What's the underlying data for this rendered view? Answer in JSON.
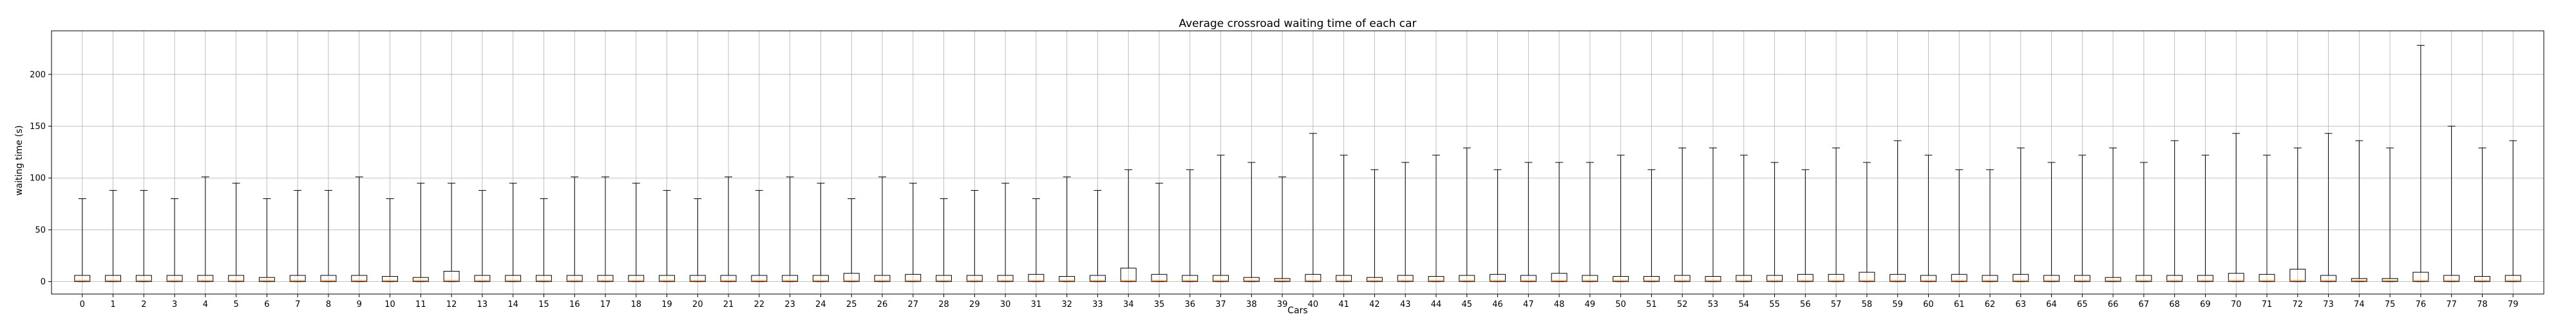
{
  "chart_data": {
    "type": "box",
    "title": "Average crossroad waiting time of each car",
    "xlabel": "Cars",
    "ylabel": "waiting time (s)",
    "ylim": [
      -12,
      242
    ],
    "yticks": [
      0,
      50,
      100,
      150,
      200
    ],
    "grid": true,
    "box_color": "#000000",
    "median_color": "#ff7f0e",
    "categories": [
      "0",
      "1",
      "2",
      "3",
      "4",
      "5",
      "6",
      "7",
      "8",
      "9",
      "10",
      "11",
      "12",
      "13",
      "14",
      "15",
      "16",
      "17",
      "18",
      "19",
      "20",
      "21",
      "22",
      "23",
      "24",
      "25",
      "26",
      "27",
      "28",
      "29",
      "30",
      "31",
      "32",
      "33",
      "34",
      "35",
      "36",
      "37",
      "38",
      "39",
      "40",
      "41",
      "42",
      "43",
      "44",
      "45",
      "46",
      "47",
      "48",
      "49",
      "50",
      "51",
      "52",
      "53",
      "54",
      "55",
      "56",
      "57",
      "58",
      "59",
      "60",
      "61",
      "62",
      "63",
      "64",
      "65",
      "66",
      "67",
      "68",
      "69",
      "70",
      "71",
      "72",
      "73",
      "74",
      "75",
      "76",
      "77",
      "78",
      "79"
    ],
    "whisker_high": [
      80,
      88,
      88,
      80,
      101,
      95,
      80,
      88,
      88,
      101,
      80,
      95,
      95,
      88,
      95,
      80,
      101,
      101,
      95,
      88,
      80,
      101,
      88,
      101,
      95,
      80,
      101,
      95,
      80,
      88,
      95,
      80,
      101,
      88,
      108,
      95,
      108,
      122,
      115,
      101,
      143,
      122,
      108,
      115,
      122,
      129,
      108,
      115,
      115,
      115,
      122,
      108,
      129,
      129,
      122,
      115,
      108,
      129,
      115,
      136,
      122,
      108,
      108,
      129,
      115,
      122,
      129,
      115,
      136,
      122,
      143,
      122,
      129,
      143,
      136,
      129,
      228,
      150,
      129,
      136
    ],
    "q3": [
      6,
      6,
      6,
      6,
      6,
      6,
      4,
      6,
      6,
      6,
      5,
      4,
      10,
      6,
      6,
      6,
      6,
      6,
      6,
      6,
      6,
      6,
      6,
      6,
      6,
      8,
      6,
      7,
      6,
      6,
      6,
      7,
      5,
      6,
      13,
      7,
      6,
      6,
      4,
      3,
      7,
      6,
      4,
      6,
      5,
      6,
      7,
      6,
      8,
      6,
      5,
      5,
      6,
      5,
      6,
      6,
      7,
      7,
      9,
      7,
      6,
      7,
      6,
      7,
      6,
      6,
      4,
      6,
      6,
      6,
      8,
      7,
      12,
      6,
      3,
      3,
      9,
      6,
      5,
      6
    ],
    "median": [
      1,
      1,
      1,
      1,
      1,
      1,
      1,
      1,
      1,
      1,
      1,
      1,
      1,
      1,
      1,
      1,
      1,
      1,
      1,
      1,
      1,
      1,
      1,
      1,
      1,
      1,
      1,
      1,
      1,
      1,
      1,
      1,
      1,
      1,
      1,
      1,
      1,
      1,
      1,
      1,
      1,
      1,
      1,
      1,
      1,
      1,
      1,
      1,
      1,
      1,
      1,
      1,
      1,
      1,
      1,
      1,
      1,
      1,
      1,
      1,
      1,
      1,
      1,
      1,
      1,
      1,
      1,
      1,
      1,
      1,
      1,
      1,
      1,
      1,
      1,
      1,
      1,
      1,
      1,
      1
    ],
    "q1": [
      0,
      0,
      0,
      0,
      0,
      0,
      0,
      0,
      0,
      0,
      0,
      0,
      0,
      0,
      0,
      0,
      0,
      0,
      0,
      0,
      0,
      0,
      0,
      0,
      0,
      0,
      0,
      0,
      0,
      0,
      0,
      0,
      0,
      0,
      0,
      0,
      0,
      0,
      0,
      0,
      0,
      0,
      0,
      0,
      0,
      0,
      0,
      0,
      0,
      0,
      0,
      0,
      0,
      0,
      0,
      0,
      0,
      0,
      0,
      0,
      0,
      0,
      0,
      0,
      0,
      0,
      0,
      0,
      0,
      0,
      0,
      0,
      0,
      0,
      0,
      0,
      0,
      0,
      0,
      0
    ],
    "whisker_low": [
      0,
      0,
      0,
      0,
      0,
      0,
      0,
      0,
      0,
      0,
      0,
      0,
      0,
      0,
      0,
      0,
      0,
      0,
      0,
      0,
      0,
      0,
      0,
      0,
      0,
      0,
      0,
      0,
      0,
      0,
      0,
      0,
      0,
      0,
      0,
      0,
      0,
      0,
      0,
      0,
      0,
      0,
      0,
      0,
      0,
      0,
      0,
      0,
      0,
      0,
      0,
      0,
      0,
      0,
      0,
      0,
      0,
      0,
      0,
      0,
      0,
      0,
      0,
      0,
      0,
      0,
      0,
      0,
      0,
      0,
      0,
      0,
      0,
      0,
      0,
      0,
      0,
      0,
      0,
      0
    ]
  }
}
